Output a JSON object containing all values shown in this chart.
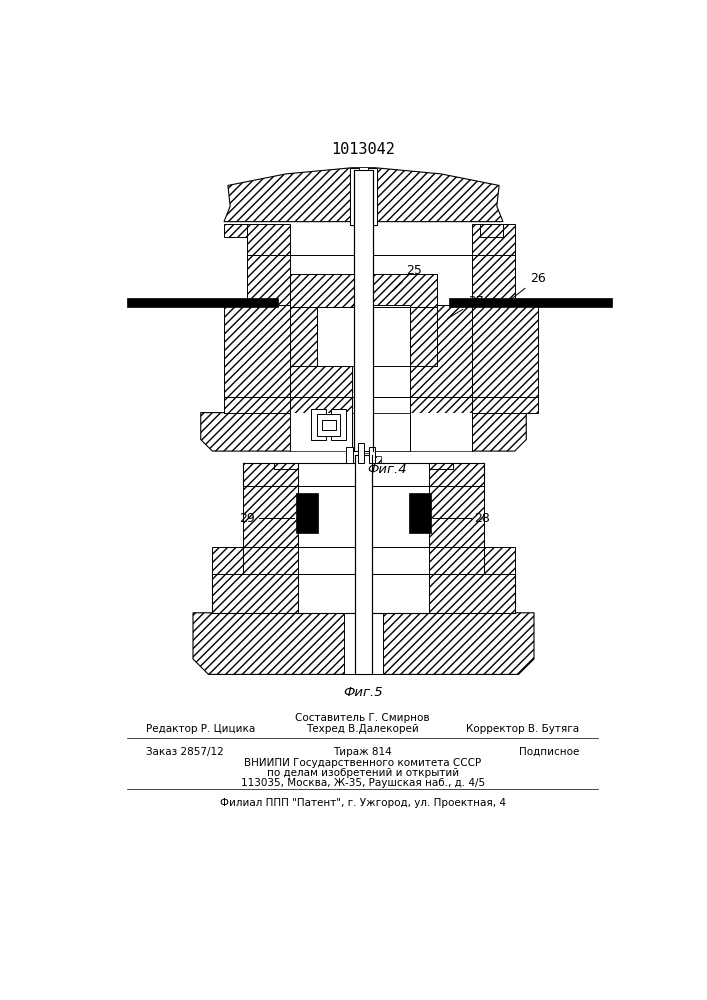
{
  "patent_number": "1013042",
  "fig4_label": "Фиг.4",
  "fig5_label": "Фиг.5",
  "footer": {
    "line1_center": "Составитель Г. Смирнов",
    "line2_left": "Редактор Р. Цицика",
    "line2_center": "Техред В.Далекорей",
    "line2_right": "Корректор В. Бутяга",
    "line3_left": "Заказ 2857/12",
    "line3_center": "Тираж 814",
    "line3_right": "Подписное",
    "line4": "ВНИИПИ Государственного комитета СССР",
    "line5": "по делам изобретений и открытий",
    "line6": "113035, Москва, Ж-35, Раушская наб., д. 4/5",
    "line7": "Филиал ППП \"Патент\", г. Ужгород, ул. Проектная, 4"
  },
  "bg_color": "#ffffff"
}
